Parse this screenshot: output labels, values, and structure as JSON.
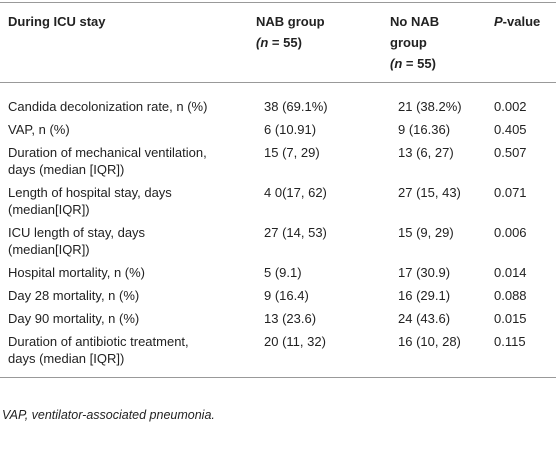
{
  "table": {
    "header": [
      [
        [
          "During ICU stay"
        ]
      ],
      [
        [
          "NAB group"
        ],
        [
          "(",
          "n",
          " = 55)"
        ]
      ],
      [
        [
          "No NAB"
        ],
        [
          "group"
        ],
        [
          "(",
          "n",
          " = 55)"
        ]
      ],
      [
        [
          "P",
          "-value"
        ]
      ]
    ],
    "rows": [
      [
        [
          "Candida decolonization rate, n (%)"
        ],
        [
          "38 (69.1%)"
        ],
        [
          "21 (38.2%)"
        ],
        [
          "0.002"
        ]
      ],
      [
        [
          "VAP, n (%)"
        ],
        [
          "6 (10.91)"
        ],
        [
          "9 (16.36)"
        ],
        [
          "0.405"
        ]
      ],
      [
        [
          "Duration of mechanical ventilation,",
          "days (median [IQR])"
        ],
        [
          "15 (7, 29)"
        ],
        [
          "13 (6, 27)"
        ],
        [
          "0.507"
        ]
      ],
      [
        [
          "Length of hospital stay, days",
          "(median[IQR])"
        ],
        [
          "4 0(17, 62)"
        ],
        [
          "27 (15, 43)"
        ],
        [
          "0.071"
        ]
      ],
      [
        [
          "ICU length of stay, days",
          "(median[IQR])"
        ],
        [
          "27 (14, 53)"
        ],
        [
          "15 (9, 29)"
        ],
        [
          "0.006"
        ]
      ],
      [
        [
          "Hospital mortality, n (%)"
        ],
        [
          "5 (9.1)"
        ],
        [
          "17 (30.9)"
        ],
        [
          "0.014"
        ]
      ],
      [
        [
          "Day 28 mortality, n (%)"
        ],
        [
          "9 (16.4)"
        ],
        [
          "16 (29.1)"
        ],
        [
          "0.088"
        ]
      ],
      [
        [
          "Day 90 mortality, n (%)"
        ],
        [
          "13 (23.6)"
        ],
        [
          "24 (43.6)"
        ],
        [
          "0.015"
        ]
      ],
      [
        [
          "Duration of antibiotic treatment,",
          "days (median [IQR])"
        ],
        [
          "20 (11, 32)"
        ],
        [
          "16 (10, 28)"
        ],
        [
          "0.115"
        ]
      ]
    ],
    "footnote": "VAP, ventilator-associated pneumonia."
  }
}
